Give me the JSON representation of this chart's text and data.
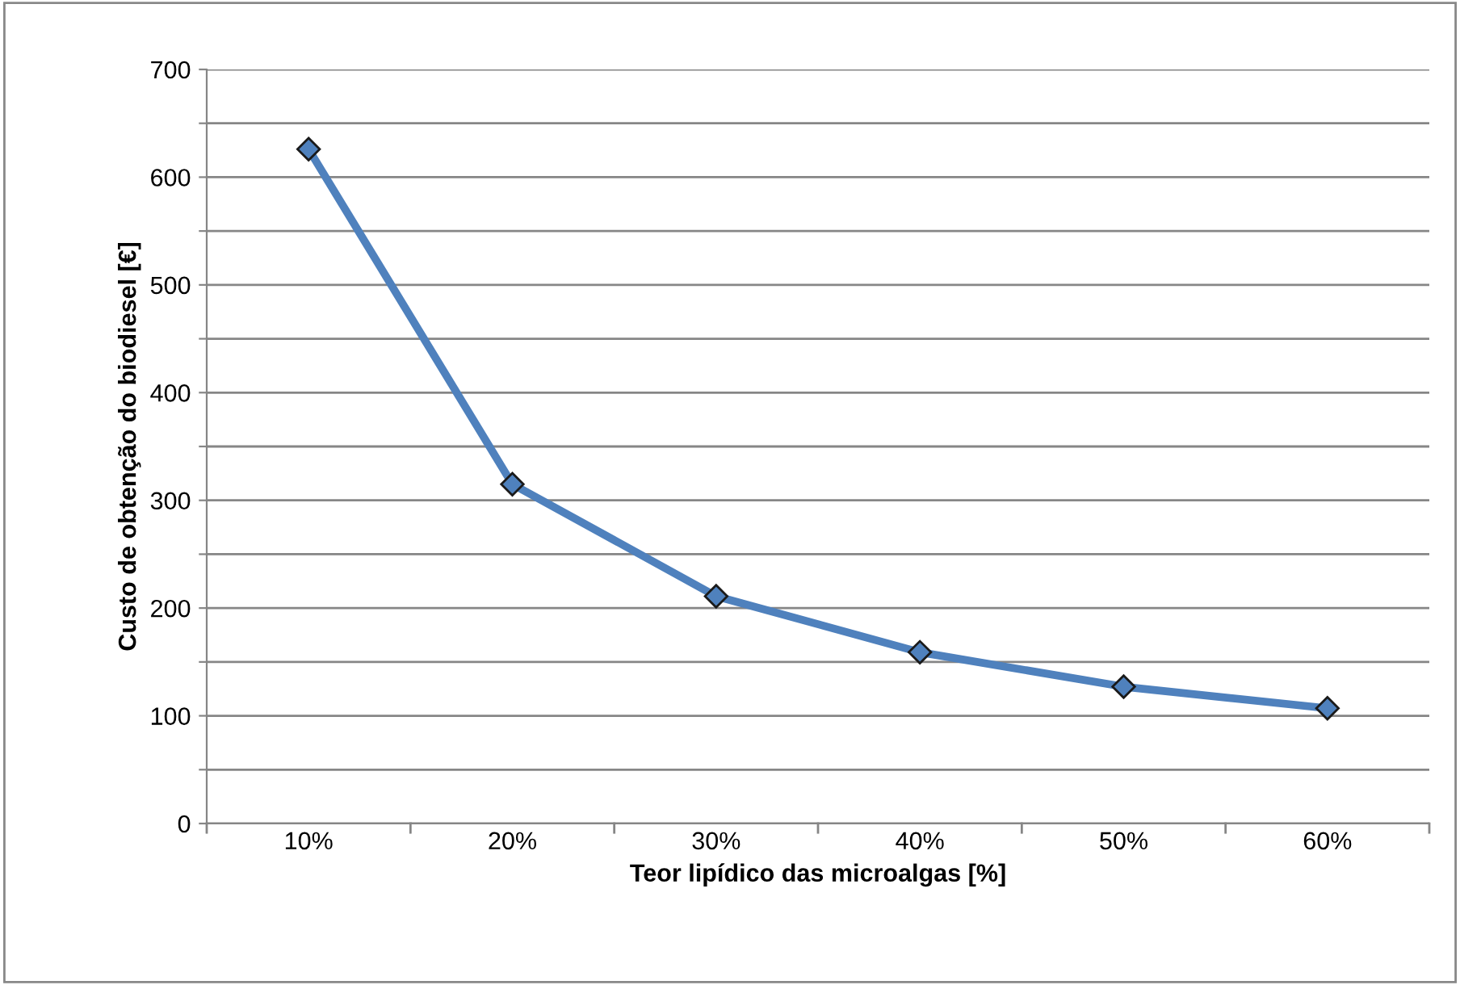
{
  "chart_data": {
    "type": "line",
    "xlabel": "Teor lipídico das microalgas [%]",
    "ylabel": "Custo de obtenção do biodiesel [€]",
    "categories": [
      "10%",
      "20%",
      "30%",
      "40%",
      "50%",
      "60%"
    ],
    "series": [
      {
        "color": "#4f81bd",
        "values": [
          626,
          315,
          211,
          159,
          127,
          107
        ]
      }
    ],
    "ylim": [
      0,
      700
    ],
    "yticks": [
      0,
      {
        "value": 50,
        "label": null
      },
      100,
      {
        "value": 150,
        "label": null
      },
      200,
      {
        "value": 250,
        "label": null
      },
      300,
      {
        "value": 350,
        "label": null
      },
      400,
      {
        "value": 450,
        "label": null
      },
      500,
      {
        "value": 550,
        "label": null
      },
      600,
      {
        "value": 650,
        "label": null
      },
      700
    ],
    "grid": "y",
    "legend": false,
    "marker": "diamond",
    "line_style": "solid"
  }
}
